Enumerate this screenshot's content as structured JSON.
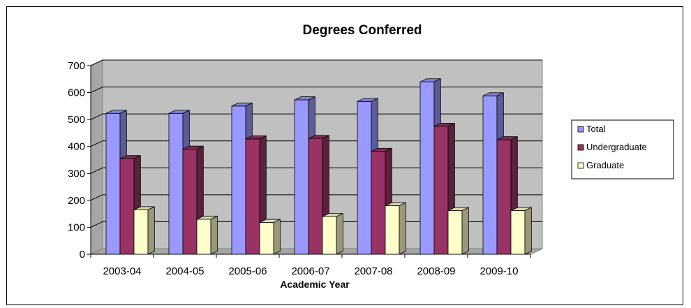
{
  "chart_data": {
    "type": "bar",
    "title": "Degrees Conferred",
    "xlabel": "Academic Year",
    "ylabel": "",
    "ylim": [
      0,
      700
    ],
    "yticks": [
      0,
      100,
      200,
      300,
      400,
      500,
      600,
      700
    ],
    "categories": [
      "2003-04",
      "2004-05",
      "2005-06",
      "2006-07",
      "2007-08",
      "2008-09",
      "2009-10"
    ],
    "series": [
      {
        "name": "Total",
        "values": [
          523,
          523,
          550,
          573,
          567,
          640,
          588
        ],
        "color": "#9999ff"
      },
      {
        "name": "Undergraduate",
        "values": [
          355,
          390,
          428,
          430,
          382,
          475,
          425
        ],
        "color": "#993366"
      },
      {
        "name": "Graduate",
        "values": [
          165,
          130,
          118,
          140,
          180,
          162,
          162
        ],
        "color": "#ffffcc"
      }
    ],
    "grid": true,
    "legend": "right",
    "style": "3d-clustered-column"
  }
}
